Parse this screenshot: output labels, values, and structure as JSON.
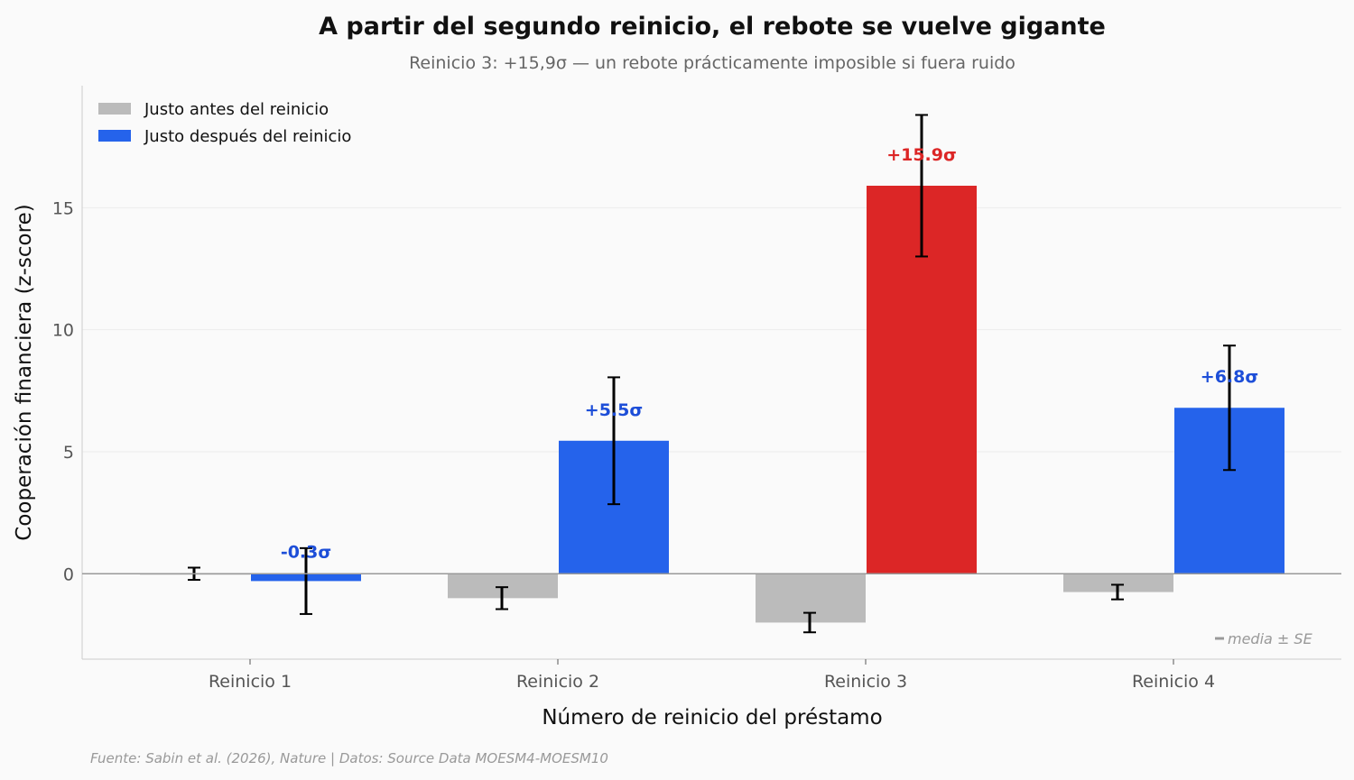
{
  "chart_data": {
    "type": "bar",
    "title": "A partir del segundo reinicio, el rebote se vuelve gigante",
    "subtitle": "Reinicio 3: +15,9σ — un rebote prácticamente imposible si fuera ruido",
    "xlabel": "Número de reinicio del préstamo",
    "ylabel": "Cooperación financiera (z-score)",
    "categories": [
      "Reinicio 1",
      "Reinicio 2",
      "Reinicio 3",
      "Reinicio 4"
    ],
    "ylim": [
      -3.5,
      20
    ],
    "yticks": [
      0,
      5,
      10,
      15
    ],
    "grid": true,
    "legend_position": "top-left",
    "series": [
      {
        "name": "Justo antes del reinicio",
        "color": "#bbbbbb",
        "values": [
          0.0,
          -1.0,
          -2.0,
          -0.75
        ],
        "errors": [
          0.25,
          0.45,
          0.4,
          0.3
        ]
      },
      {
        "name": "Justo después del reinicio",
        "color": "#2563eb",
        "highlight_color": "#dc2626",
        "highlight_index": 2,
        "values": [
          -0.3,
          5.45,
          15.9,
          6.8
        ],
        "errors": [
          1.35,
          2.6,
          2.9,
          2.55
        ],
        "labels": [
          "-0.3σ",
          "+5.5σ",
          "+15.9σ",
          "+6.8σ"
        ]
      }
    ],
    "note": "media ± SE",
    "source": "Fuente: Sabin et al. (2026), Nature | Datos: Source Data MOESM4-MOESM10"
  },
  "colors": {
    "label_blue": "#1d4ed8",
    "label_red": "#dc2626",
    "grid": "#ececec",
    "axis": "#cccccc",
    "zero_line": "#999999"
  }
}
